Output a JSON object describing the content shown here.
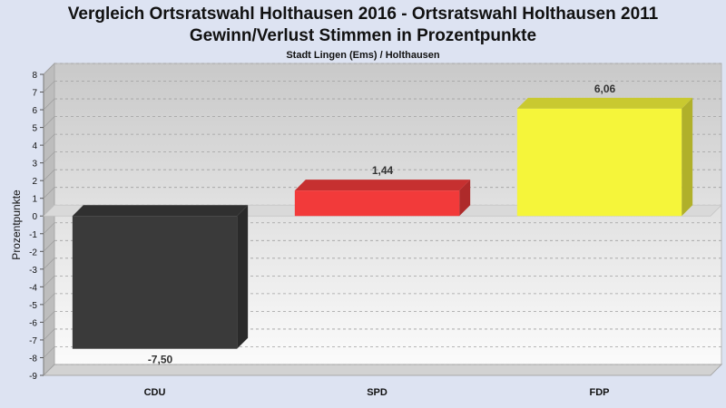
{
  "chart_data": {
    "type": "bar",
    "title": "Vergleich Ortsratswahl Holthausen 2016 - Ortsratswahl Holthausen 2011",
    "subtitle": "Gewinn/Verlust Stimmen in Prozentpunkte",
    "caption": "Stadt Lingen (Ems) / Holthausen",
    "ylabel": "Prozentpunkte",
    "xlabel": "",
    "ylim": [
      -9,
      8
    ],
    "yticks": [
      8,
      7,
      6,
      5,
      4,
      3,
      2,
      1,
      0,
      -1,
      -2,
      -3,
      -4,
      -5,
      -6,
      -7,
      -8,
      -9
    ],
    "ytick_labels": [
      "8",
      "7",
      "6",
      "5",
      "4",
      "3",
      "2",
      "1",
      "0",
      "-1",
      "-2",
      "-3",
      "-4",
      "-5",
      "-6",
      "-7",
      "-8",
      "-9"
    ],
    "categories": [
      "CDU",
      "SPD",
      "FDP"
    ],
    "values": [
      -7.5,
      1.44,
      6.06
    ],
    "value_labels": [
      "-7,50",
      "1,44",
      "6,06"
    ],
    "colors": [
      "#3a3a3a",
      "#f23a3a",
      "#f5f53a"
    ],
    "grid": true,
    "legend": "none"
  }
}
